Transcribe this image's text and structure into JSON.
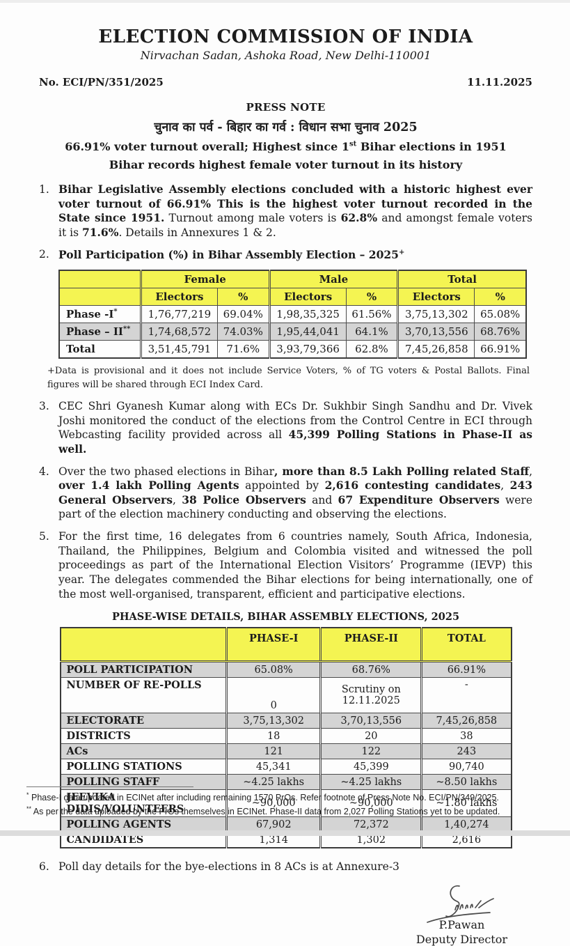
{
  "colors": {
    "accent_yellow": "#f4f452",
    "row_gray": "#d4d4d4",
    "text": "#1c1c1c"
  },
  "header": {
    "org": "ELECTION COMMISSION OF INDIA",
    "address": "Nirvachan Sadan, Ashoka Road, New Delhi-110001",
    "ref_no": "No. ECI/PN/351/2025",
    "date": "11.11.2025"
  },
  "press_note": {
    "title": "PRESS NOTE",
    "hindi_line": "चुनाव का पर्व - बिहार का गर्व : विधान सभा चुनाव 2025",
    "subtitle1": [
      {
        "t": "66.91% voter turnout overall; Highest since 1",
        "b": 1
      },
      {
        "t": "st",
        "b": 1,
        "sup": 1
      },
      {
        "t": " Bihar elections in 1951",
        "b": 1
      }
    ],
    "subtitle2": "Bihar records highest female voter turnout in its history"
  },
  "items": {
    "i1": {
      "num": "1.",
      "segs": [
        {
          "t": "Bihar Legislative Assembly elections concluded with a historic highest ever voter turnout of 66.91% This is the highest voter turnout recorded in the State since 1951.",
          "b": 1
        },
        {
          "t": " Turnout among male voters is "
        },
        {
          "t": "62.8%",
          "b": 1
        },
        {
          "t": " and amongst female voters it is "
        },
        {
          "t": "71.6%",
          "b": 1
        },
        {
          "t": ". Details in Annexures 1 & 2."
        }
      ]
    },
    "i2": {
      "num": "2.",
      "segs": [
        {
          "t": "Poll Participation (%) in Bihar Assembly Election – 2025",
          "b": 1
        },
        {
          "t": "+",
          "b": 1,
          "sup": 1
        }
      ]
    },
    "i3": {
      "num": "3.",
      "segs": [
        {
          "t": "CEC Shri Gyanesh Kumar along with ECs Dr. Sukhbir Singh Sandhu and Dr. Vivek Joshi monitored the conduct of the elections from the Control Centre in ECI through Webcasting facility provided across all "
        },
        {
          "t": "45,399 Polling Stations in Phase-II as well.",
          "b": 1
        }
      ]
    },
    "i4": {
      "num": "4.",
      "segs": [
        {
          "t": "Over the two phased elections in Bihar"
        },
        {
          "t": ", more than 8.5 Lakh Polling related Staff",
          "b": 1
        },
        {
          "t": ", "
        },
        {
          "t": "over 1.4 lakh Polling Agents",
          "b": 1
        },
        {
          "t": " appointed by "
        },
        {
          "t": "2,616 contesting candidates",
          "b": 1
        },
        {
          "t": ", "
        },
        {
          "t": "243 General Observers",
          "b": 1
        },
        {
          "t": ", "
        },
        {
          "t": "38 Police Observers",
          "b": 1
        },
        {
          "t": " and "
        },
        {
          "t": "67 Expenditure Observers",
          "b": 1
        },
        {
          "t": " were part of the election machinery conducting and observing the elections."
        }
      ]
    },
    "i5": {
      "num": "5.",
      "segs": [
        {
          "t": "For the first time, 16 delegates from 6 countries namely, South Africa, Indonesia, Thailand, the Philippines, Belgium and Colombia visited and witnessed the poll proceedings as part of the International Election Visitors’ Programme (IEVP) this year. The delegates commended the Bihar elections for being internationally, one of the most well-organised, transparent, efficient and participative elections."
        }
      ]
    },
    "i6": {
      "num": "6.",
      "segs": [
        {
          "t": "Poll day details for the bye-elections in 8 ACs is at Annexure-3"
        }
      ]
    }
  },
  "table1": {
    "group_headers": {
      "female": "Female",
      "male": "Male",
      "total": "Total"
    },
    "sub_headers": {
      "electors": "Electors",
      "pct": "%"
    },
    "rows": [
      {
        "label": "Phase -I",
        "label_sup": "*",
        "cells": [
          "1,76,77,219",
          "69.04%",
          "1,98,35,325",
          "61.56%",
          "3,75,13,302",
          "65.08%"
        ]
      },
      {
        "label": "Phase – II",
        "label_sup": "**",
        "cells": [
          "1,74,68,572",
          "74.03%",
          "1,95,44,041",
          "64.1%",
          "3,70,13,556",
          "68.76%"
        ]
      },
      {
        "label": "Total",
        "label_sup": "",
        "cells": [
          "3,51,45,791",
          "71.6%",
          "3,93,79,366",
          "62.8%",
          "7,45,26,858",
          "66.91%"
        ]
      }
    ],
    "footnote": "+Data is provisional and it does not include Service Voters, % of TG voters & Postal Ballots. Final figures will be shared through ECI Index Card."
  },
  "table2": {
    "caption": "PHASE-WISE DETAILS, BIHAR ASSEMBLY ELECTIONS, 2025",
    "headers": {
      "phase1": "PHASE-I",
      "phase2": "PHASE-II",
      "total": "TOTAL"
    },
    "rows": {
      "participation": {
        "label": "POLL PARTICIPATION",
        "c1": "65.08%",
        "c2": "68.76%",
        "c3": "66.91%"
      },
      "repolls": {
        "label": "NUMBER OF RE-POLLS",
        "c1": "0",
        "c2_line1": "Scrutiny on",
        "c2_line2": "12.11.2025",
        "c3": "-"
      },
      "electorate": {
        "label": "ELECTORATE",
        "c1": "3,75,13,302",
        "c2": "3,70,13,556",
        "c3": "7,45,26,858"
      },
      "districts": {
        "label": "DISTRICTS",
        "c1": "18",
        "c2": "20",
        "c3": "38"
      },
      "acs": {
        "label": "ACs",
        "c1": "121",
        "c2": "122",
        "c3": "243"
      },
      "stations": {
        "label": "POLLING STATIONS",
        "c1": "45,341",
        "c2": "45,399",
        "c3": "90,740"
      },
      "staff": {
        "label": "POLLING STAFF",
        "c1": "~4.25 lakhs",
        "c2": "~4.25 lakhs",
        "c3": "~8.50 lakhs"
      },
      "jeevika": {
        "label": "JEEVIKA DIDIS/VOLUNTEERS",
        "c1": "~90,000",
        "c2": "~90,000",
        "c3": "~1.80 lakhs"
      },
      "agents": {
        "label": "POLLING AGENTS",
        "c1": "67,902",
        "c2": "72,372",
        "c3": "1,40,274"
      },
      "candidates": {
        "label": "CANDIDATES",
        "c1": "1,314",
        "c2": "1,302",
        "c3": "2,616"
      }
    }
  },
  "signature": {
    "name": "P.Pawan",
    "title": "Deputy Director"
  },
  "footnotes": [
    {
      "marker": "*",
      "text": " Phase-I data updated in ECINet after including remaining 1570 PrOs. Refer footnote of Press Note No. ECI/PN/349/2025."
    },
    {
      "marker": "**",
      "text": " As per the data uploaded by the PrOs themselves in ECINet. Phase-II data from 2,027 Polling Stations yet to be updated."
    }
  ]
}
